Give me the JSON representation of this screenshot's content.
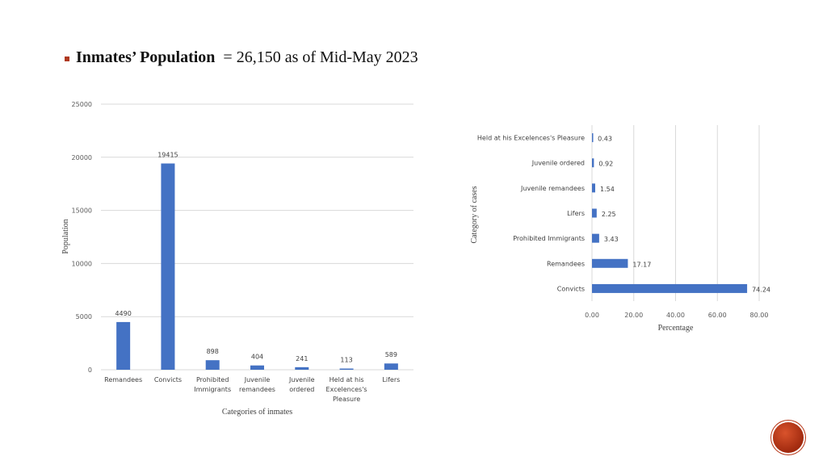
{
  "slide": {
    "title_bold": "Inmates’ Population",
    "title_rest": "= 26,150 as of Mid-May 2023",
    "bullet_color": "#b0391f",
    "logo_icon": "circle-seal-logo"
  },
  "chart_data": [
    {
      "type": "bar",
      "orientation": "vertical",
      "categories": [
        [
          "Remandees"
        ],
        [
          "Convicts"
        ],
        [
          "Prohibited",
          "Immigrants"
        ],
        [
          "Juvenile",
          "remandees"
        ],
        [
          "Juvenile",
          "ordered"
        ],
        [
          "Held at his",
          "Excelences's",
          "Pleasure"
        ],
        [
          "Lifers"
        ]
      ],
      "values": [
        4490,
        19415,
        898,
        404,
        241,
        113,
        589
      ],
      "xlabel": "Categories of inmates",
      "ylabel": "Population",
      "ylim": [
        0,
        25000
      ],
      "yticks": [
        "0",
        "5000",
        "10000",
        "15000",
        "20000",
        "25000"
      ],
      "grid": true,
      "bar_color": "#4472c4"
    },
    {
      "type": "bar",
      "orientation": "horizontal",
      "categories": [
        "Held at his Excelences's Pleasure",
        "Juvenile ordered",
        "Juvenile remandees",
        "Lifers",
        "Prohibited Immigrants",
        "Remandees",
        "Convicts"
      ],
      "values": [
        0.43,
        0.92,
        1.54,
        2.25,
        3.43,
        17.17,
        74.24
      ],
      "value_labels": [
        "0.43",
        "0.92",
        "1.54",
        "2.25",
        "3.43",
        "17.17",
        "74.24"
      ],
      "xlabel": "Percentage",
      "ylabel": "Category of cases",
      "xlim": [
        0,
        80
      ],
      "xticks": [
        "0.00",
        "20.00",
        "40.00",
        "60.00",
        "80.00"
      ],
      "grid": true,
      "bar_color": "#4472c4"
    }
  ]
}
